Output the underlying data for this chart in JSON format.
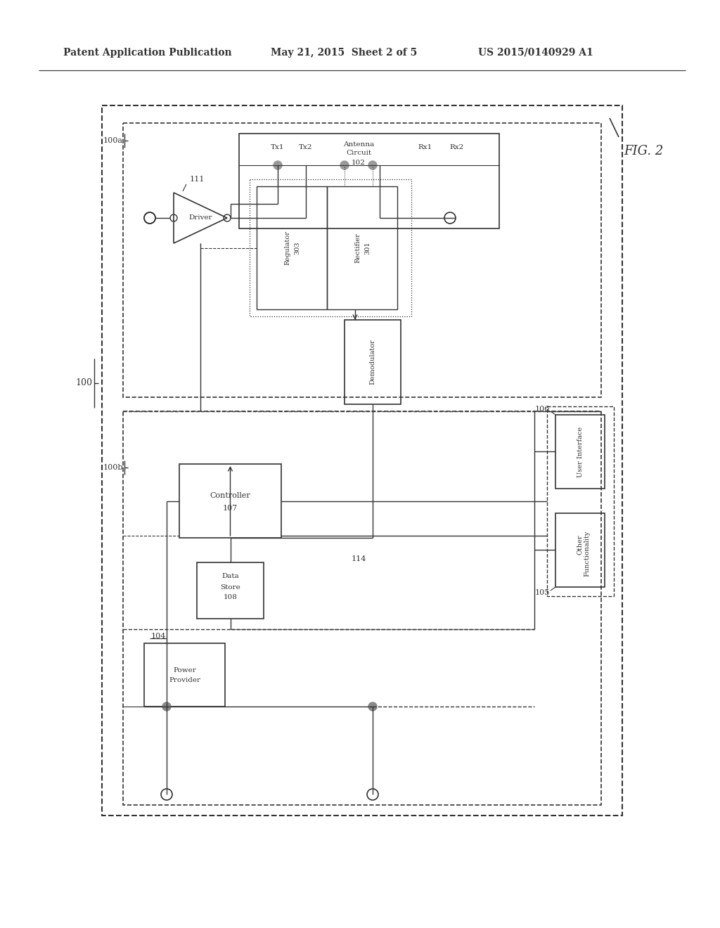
{
  "header_left": "Patent Application Publication",
  "header_mid": "May 21, 2015  Sheet 2 of 5",
  "header_right": "US 2015/0140929 A1",
  "bg_color": "#ffffff",
  "lc": "#333333",
  "fig_label": "FIG. 2"
}
